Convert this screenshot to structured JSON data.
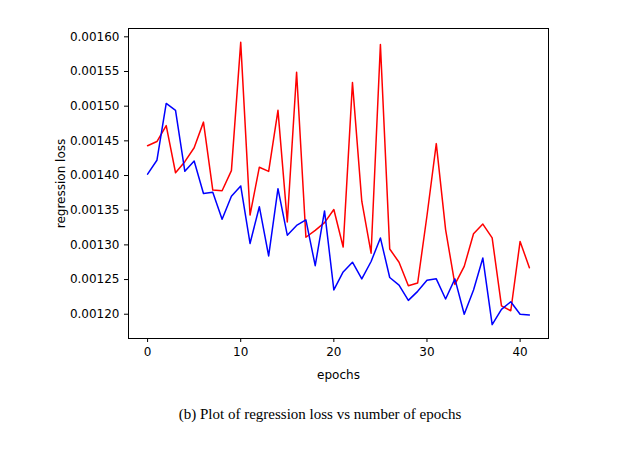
{
  "chart_data": {
    "type": "line",
    "caption": "(b) Plot of regression loss vs number of epochs",
    "x_label": "epochs",
    "y_label": "regression loss",
    "x": [
      0,
      1,
      2,
      3,
      4,
      5,
      6,
      7,
      8,
      9,
      10,
      11,
      12,
      13,
      14,
      15,
      16,
      17,
      18,
      19,
      20,
      21,
      22,
      23,
      24,
      25,
      26,
      27,
      28,
      29,
      30,
      31,
      32,
      33,
      34,
      35,
      36,
      37,
      38,
      39,
      40,
      41
    ],
    "series": [
      {
        "color": "#ff0000",
        "values": [
          0.001443,
          0.001449,
          0.001472,
          0.001404,
          0.00142,
          0.00144,
          0.001477,
          0.001379,
          0.001378,
          0.001407,
          0.001592,
          0.001343,
          0.001412,
          0.001406,
          0.001494,
          0.001333,
          0.001549,
          0.001311,
          0.001321,
          0.001332,
          0.001351,
          0.001297,
          0.001534,
          0.001363,
          0.001288,
          0.001589,
          0.001294,
          0.001275,
          0.001241,
          0.001245,
          0.001342,
          0.001446,
          0.001322,
          0.001243,
          0.001269,
          0.001316,
          0.00133,
          0.00131,
          0.001212,
          0.001205,
          0.001305,
          0.001267
        ]
      },
      {
        "color": "#0000ff",
        "values": [
          0.001402,
          0.001422,
          0.001504,
          0.001494,
          0.001406,
          0.001421,
          0.001374,
          0.001376,
          0.001337,
          0.00137,
          0.001385,
          0.001302,
          0.001355,
          0.001284,
          0.001381,
          0.001314,
          0.001328,
          0.001336,
          0.00127,
          0.001349,
          0.001235,
          0.001261,
          0.001275,
          0.001251,
          0.001276,
          0.00131,
          0.001253,
          0.001242,
          0.00122,
          0.001233,
          0.001249,
          0.001251,
          0.001222,
          0.001251,
          0.0012,
          0.001235,
          0.001281,
          0.001185,
          0.001207,
          0.001218,
          0.0012,
          0.001199
        ]
      }
    ],
    "xlim": [
      -2.05,
      43.05
    ],
    "xticks": [
      0,
      10,
      20,
      30,
      40
    ],
    "ylim": [
      0.001165,
      0.001612
    ],
    "yticks": [
      {
        "value": 0.0012,
        "label": "0.00120"
      },
      {
        "value": 0.00125,
        "label": "0.00125"
      },
      {
        "value": 0.0013,
        "label": "0.00130"
      },
      {
        "value": 0.00135,
        "label": "0.00135"
      },
      {
        "value": 0.0014,
        "label": "0.00140"
      },
      {
        "value": 0.00145,
        "label": "0.00145"
      },
      {
        "value": 0.0015,
        "label": "0.00150"
      },
      {
        "value": 0.00155,
        "label": "0.00155"
      },
      {
        "value": 0.0016,
        "label": "0.00160"
      }
    ],
    "grid": false
  }
}
